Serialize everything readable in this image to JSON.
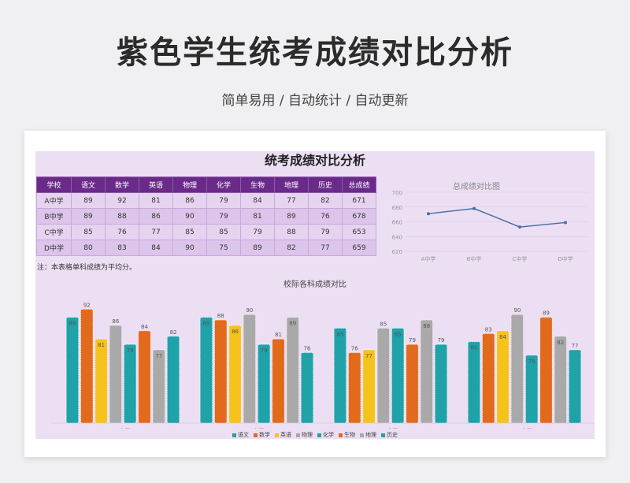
{
  "header": {
    "title": "紫色学生统考成绩对比分析",
    "subtitle": "简单易用 / 自动统计 / 自动更新"
  },
  "sheet": {
    "title": "统考成绩对比分析",
    "note": "注：本表格单科成绩为平均分。",
    "columns": [
      "学校",
      "语文",
      "数学",
      "英语",
      "物理",
      "化学",
      "生物",
      "地理",
      "历史",
      "总成绩"
    ],
    "rows": [
      [
        "A中学",
        "89",
        "92",
        "81",
        "86",
        "79",
        "84",
        "77",
        "82",
        "671"
      ],
      [
        "B中学",
        "89",
        "88",
        "86",
        "90",
        "79",
        "81",
        "89",
        "76",
        "678"
      ],
      [
        "C中学",
        "85",
        "76",
        "77",
        "85",
        "85",
        "79",
        "88",
        "79",
        "653"
      ],
      [
        "D中学",
        "80",
        "83",
        "84",
        "90",
        "75",
        "89",
        "82",
        "77",
        "659"
      ]
    ]
  },
  "chart_data": [
    {
      "type": "line",
      "title": "总成绩对比图",
      "categories": [
        "A中学",
        "B中学",
        "C中学",
        "D中学"
      ],
      "values": [
        671,
        678,
        653,
        659
      ],
      "ylim": [
        620,
        700
      ],
      "yticks": [
        620,
        640,
        660,
        680,
        700
      ],
      "color": "#4a6fa5"
    },
    {
      "type": "bar",
      "title": "校际各科成绩对比",
      "categories": [
        "A中学",
        "B中学",
        "C中学",
        "D中学"
      ],
      "ylim": [
        0,
        95
      ],
      "series": [
        {
          "name": "语文",
          "color": "#1fa2a8",
          "values": [
            89,
            89,
            85,
            80
          ]
        },
        {
          "name": "数学",
          "color": "#e26a1c",
          "values": [
            92,
            88,
            76,
            83
          ]
        },
        {
          "name": "英语",
          "color": "#f6c21c",
          "values": [
            81,
            86,
            77,
            84
          ]
        },
        {
          "name": "物理",
          "color": "#a9a9a9",
          "values": [
            86,
            90,
            85,
            90
          ]
        },
        {
          "name": "化学",
          "color": "#1fa2a8",
          "values": [
            79,
            79,
            85,
            75
          ]
        },
        {
          "name": "生物",
          "color": "#e26a1c",
          "values": [
            84,
            81,
            79,
            89
          ]
        },
        {
          "name": "地理",
          "color": "#a9a9a9",
          "values": [
            77,
            89,
            88,
            82
          ]
        },
        {
          "name": "历史",
          "color": "#1fa2a8",
          "values": [
            82,
            76,
            79,
            77
          ]
        }
      ],
      "legend_position": "bottom"
    }
  ]
}
